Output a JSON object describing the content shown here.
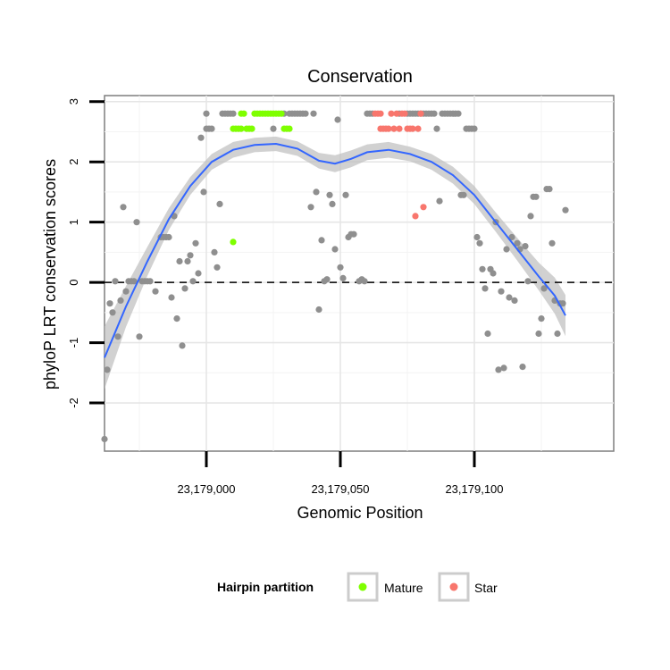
{
  "chart_data": {
    "type": "scatter",
    "title": "Conservation",
    "xlabel": "Genomic Position",
    "ylabel": "phyloP LRT conservation scores",
    "xlim": [
      23178962,
      23179152
    ],
    "ylim": [
      -2.8,
      3.1
    ],
    "x_ticks": [
      {
        "value": 23179000,
        "label": "23,179,000"
      },
      {
        "value": 23179050,
        "label": "23,179,050"
      },
      {
        "value": 23179100,
        "label": "23,179,100"
      }
    ],
    "y_ticks": [
      {
        "value": -2,
        "label": "-2"
      },
      {
        "value": -1,
        "label": "-1"
      },
      {
        "value": 0,
        "label": "0"
      },
      {
        "value": 1,
        "label": "1"
      },
      {
        "value": 2,
        "label": "2"
      },
      {
        "value": 3,
        "label": "3"
      }
    ],
    "grid": true,
    "reference_line": {
      "y": 0,
      "style": "dashed"
    },
    "legend": {
      "title": "Hairpin partition",
      "position": "bottom",
      "entries": [
        {
          "label": "Mature",
          "color": "#7fff00"
        },
        {
          "label": "Star",
          "color": "#f8766d"
        }
      ]
    },
    "colors": {
      "other": "#8f8f8f",
      "mature": "#7fff00",
      "star": "#f8766d",
      "smooth": "#3366ff",
      "ribbon": "#bdbdbd"
    },
    "series": [
      {
        "group": "other",
        "points": [
          [
            23178962,
            -2.6
          ],
          [
            23178963,
            -1.45
          ],
          [
            23178964,
            -0.35
          ],
          [
            23178965,
            -0.5
          ],
          [
            23178966,
            0.02
          ],
          [
            23178967,
            -0.9
          ],
          [
            23178968,
            -0.3
          ],
          [
            23178969,
            1.25
          ],
          [
            23178970,
            -0.15
          ],
          [
            23178971,
            0.02
          ],
          [
            23178972,
            0.02
          ],
          [
            23178973,
            0.02
          ],
          [
            23178974,
            1.0
          ],
          [
            23178975,
            -0.9
          ],
          [
            23178976,
            0.02
          ],
          [
            23178977,
            0.02
          ],
          [
            23178978,
            0.02
          ],
          [
            23178979,
            0.02
          ],
          [
            23178981,
            -0.15
          ],
          [
            23178983,
            0.75
          ],
          [
            23178984,
            0.75
          ],
          [
            23178985,
            0.75
          ],
          [
            23178986,
            0.75
          ],
          [
            23178987,
            -0.25
          ],
          [
            23178988,
            1.1
          ],
          [
            23178989,
            -0.6
          ],
          [
            23178990,
            0.35
          ],
          [
            23178991,
            -1.05
          ],
          [
            23178992,
            -0.1
          ],
          [
            23178993,
            0.35
          ],
          [
            23178994,
            0.45
          ],
          [
            23178995,
            0.02
          ],
          [
            23178996,
            0.65
          ],
          [
            23178997,
            0.15
          ],
          [
            23178998,
            2.4
          ],
          [
            23178999,
            1.5
          ],
          [
            23179000,
            2.55
          ],
          [
            23179000,
            2.8
          ],
          [
            23179001,
            2.55
          ],
          [
            23179002,
            2.55
          ],
          [
            23179003,
            0.5
          ],
          [
            23179004,
            0.25
          ],
          [
            23179005,
            1.3
          ],
          [
            23179006,
            2.8
          ],
          [
            23179007,
            2.8
          ],
          [
            23179008,
            2.8
          ],
          [
            23179009,
            2.8
          ],
          [
            23179010,
            2.8
          ],
          [
            23179025,
            2.55
          ],
          [
            23179029,
            2.8
          ],
          [
            23179031,
            2.8
          ],
          [
            23179032,
            2.8
          ],
          [
            23179033,
            2.8
          ],
          [
            23179034,
            2.8
          ],
          [
            23179035,
            2.8
          ],
          [
            23179036,
            2.8
          ],
          [
            23179037,
            2.8
          ],
          [
            23179039,
            1.25
          ],
          [
            23179040,
            2.8
          ],
          [
            23179041,
            1.5
          ],
          [
            23179042,
            -0.45
          ],
          [
            23179043,
            0.7
          ],
          [
            23179044,
            0.02
          ],
          [
            23179045,
            0.05
          ],
          [
            23179046,
            1.45
          ],
          [
            23179047,
            1.3
          ],
          [
            23179048,
            0.55
          ],
          [
            23179049,
            2.7
          ],
          [
            23179050,
            0.25
          ],
          [
            23179051,
            0.07
          ],
          [
            23179052,
            1.45
          ],
          [
            23179053,
            0.75
          ],
          [
            23179054,
            0.8
          ],
          [
            23179055,
            0.8
          ],
          [
            23179057,
            0.02
          ],
          [
            23179058,
            0.05
          ],
          [
            23179059,
            0.02
          ],
          [
            23179060,
            2.8
          ],
          [
            23179061,
            2.8
          ],
          [
            23179062,
            2.8
          ],
          [
            23179072,
            2.8
          ],
          [
            23179075,
            2.8
          ],
          [
            23179076,
            2.8
          ],
          [
            23179077,
            2.8
          ],
          [
            23179078,
            2.8
          ],
          [
            23179079,
            2.8
          ],
          [
            23179080,
            2.8
          ],
          [
            23179081,
            2.8
          ],
          [
            23179082,
            2.8
          ],
          [
            23179083,
            2.8
          ],
          [
            23179084,
            2.8
          ],
          [
            23179085,
            2.8
          ],
          [
            23179086,
            2.55
          ],
          [
            23179087,
            1.35
          ],
          [
            23179088,
            2.8
          ],
          [
            23179089,
            2.8
          ],
          [
            23179090,
            2.8
          ],
          [
            23179091,
            2.8
          ],
          [
            23179092,
            2.8
          ],
          [
            23179093,
            2.8
          ],
          [
            23179094,
            2.8
          ],
          [
            23179095,
            1.45
          ],
          [
            23179096,
            1.45
          ],
          [
            23179097,
            2.55
          ],
          [
            23179098,
            2.55
          ],
          [
            23179099,
            2.55
          ],
          [
            23179100,
            2.55
          ],
          [
            23179101,
            0.75
          ],
          [
            23179102,
            0.65
          ],
          [
            23179103,
            0.22
          ],
          [
            23179104,
            -0.1
          ],
          [
            23179105,
            -0.85
          ],
          [
            23179106,
            0.22
          ],
          [
            23179107,
            0.15
          ],
          [
            23179108,
            1.0
          ],
          [
            23179109,
            -1.45
          ],
          [
            23179110,
            -0.15
          ],
          [
            23179111,
            -1.42
          ],
          [
            23179112,
            0.55
          ],
          [
            23179113,
            -0.25
          ],
          [
            23179114,
            0.75
          ],
          [
            23179115,
            -0.3
          ],
          [
            23179116,
            0.65
          ],
          [
            23179117,
            0.55
          ],
          [
            23179118,
            -1.4
          ],
          [
            23179119,
            0.6
          ],
          [
            23179120,
            0.02
          ],
          [
            23179121,
            1.1
          ],
          [
            23179122,
            1.42
          ],
          [
            23179123,
            1.42
          ],
          [
            23179124,
            -0.85
          ],
          [
            23179125,
            -0.6
          ],
          [
            23179126,
            -0.1
          ],
          [
            23179127,
            1.55
          ],
          [
            23179128,
            1.55
          ],
          [
            23179129,
            0.65
          ],
          [
            23179130,
            -0.3
          ],
          [
            23179131,
            -0.85
          ],
          [
            23179132,
            -0.35
          ],
          [
            23179133,
            -0.35
          ],
          [
            23179134,
            1.2
          ]
        ]
      },
      {
        "group": "mature",
        "points": [
          [
            23179010,
            0.67
          ],
          [
            23179010,
            2.55
          ],
          [
            23179011,
            2.55
          ],
          [
            23179012,
            2.55
          ],
          [
            23179013,
            2.55
          ],
          [
            23179013,
            2.8
          ],
          [
            23179014,
            2.8
          ],
          [
            23179015,
            2.55
          ],
          [
            23179016,
            2.55
          ],
          [
            23179017,
            2.55
          ],
          [
            23179018,
            2.8
          ],
          [
            23179019,
            2.8
          ],
          [
            23179020,
            2.8
          ],
          [
            23179021,
            2.8
          ],
          [
            23179022,
            2.8
          ],
          [
            23179023,
            2.8
          ],
          [
            23179024,
            2.8
          ],
          [
            23179025,
            2.8
          ],
          [
            23179026,
            2.8
          ],
          [
            23179027,
            2.8
          ],
          [
            23179028,
            2.8
          ],
          [
            23179029,
            2.55
          ],
          [
            23179030,
            2.55
          ],
          [
            23179031,
            2.55
          ]
        ]
      },
      {
        "group": "star",
        "points": [
          [
            23179063,
            2.8
          ],
          [
            23179064,
            2.8
          ],
          [
            23179065,
            2.55
          ],
          [
            23179065,
            2.8
          ],
          [
            23179066,
            2.55
          ],
          [
            23179067,
            2.55
          ],
          [
            23179068,
            2.55
          ],
          [
            23179069,
            2.8
          ],
          [
            23179070,
            2.55
          ],
          [
            23179071,
            2.8
          ],
          [
            23179072,
            2.55
          ],
          [
            23179073,
            2.8
          ],
          [
            23179074,
            2.8
          ],
          [
            23179075,
            2.55
          ],
          [
            23179076,
            2.55
          ],
          [
            23179077,
            2.55
          ],
          [
            23179078,
            1.1
          ],
          [
            23179079,
            2.55
          ],
          [
            23179080,
            2.8
          ],
          [
            23179081,
            1.25
          ]
        ]
      }
    ],
    "smooth": [
      [
        23178962,
        -1.25
      ],
      [
        23178970,
        -0.4
      ],
      [
        23178978,
        0.35
      ],
      [
        23178986,
        1.05
      ],
      [
        23178994,
        1.6
      ],
      [
        23179002,
        2.0
      ],
      [
        23179010,
        2.2
      ],
      [
        23179018,
        2.28
      ],
      [
        23179026,
        2.3
      ],
      [
        23179034,
        2.22
      ],
      [
        23179042,
        2.02
      ],
      [
        23179048,
        1.97
      ],
      [
        23179054,
        2.05
      ],
      [
        23179060,
        2.16
      ],
      [
        23179068,
        2.2
      ],
      [
        23179076,
        2.13
      ],
      [
        23179084,
        2.0
      ],
      [
        23179092,
        1.78
      ],
      [
        23179100,
        1.45
      ],
      [
        23179108,
        1.0
      ],
      [
        23179116,
        0.55
      ],
      [
        23179124,
        0.1
      ],
      [
        23179130,
        -0.22
      ],
      [
        23179134,
        -0.55
      ]
    ],
    "ribbon_halfwidth": [
      0.52,
      0.34,
      0.24,
      0.18,
      0.15,
      0.13,
      0.13,
      0.12,
      0.12,
      0.12,
      0.13,
      0.14,
      0.14,
      0.13,
      0.13,
      0.12,
      0.13,
      0.14,
      0.15,
      0.16,
      0.19,
      0.23,
      0.3,
      0.34
    ]
  }
}
